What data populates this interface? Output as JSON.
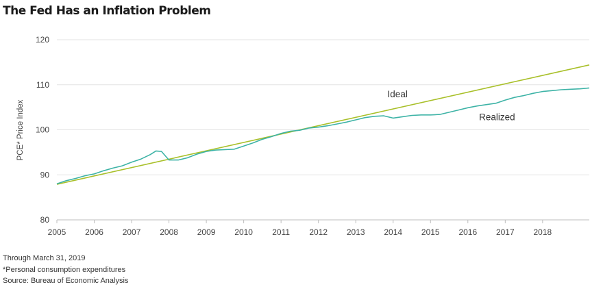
{
  "chart_data": {
    "type": "line",
    "title": "The Fed Has an Inflation Problem",
    "ylabel": "PCE* Price Index",
    "xlabel": "",
    "xlim": [
      2005,
      2019.25
    ],
    "ylim": [
      80,
      120
    ],
    "y_ticks": [
      80,
      90,
      100,
      110,
      120
    ],
    "x_ticks": [
      "2005",
      "2006",
      "2007",
      "2008",
      "2009",
      "2010",
      "2011",
      "2012",
      "2013",
      "2014",
      "2015",
      "2016",
      "2017",
      "2018"
    ],
    "grid": "horizontal",
    "series": [
      {
        "name": "Ideal",
        "color": "#a9c02a",
        "x": [
          2005.0,
          2019.25
        ],
        "y": [
          87.9,
          114.4
        ]
      },
      {
        "name": "Realized",
        "color": "#3db3a6",
        "x": [
          2005.0,
          2005.25,
          2005.5,
          2005.75,
          2006.0,
          2006.25,
          2006.5,
          2006.75,
          2007.0,
          2007.25,
          2007.5,
          2007.65,
          2007.8,
          2008.0,
          2008.25,
          2008.5,
          2008.75,
          2009.0,
          2009.25,
          2009.5,
          2009.75,
          2010.0,
          2010.25,
          2010.5,
          2010.75,
          2011.0,
          2011.25,
          2011.5,
          2011.75,
          2012.0,
          2012.25,
          2012.5,
          2012.75,
          2013.0,
          2013.25,
          2013.5,
          2013.75,
          2014.0,
          2014.25,
          2014.5,
          2014.75,
          2015.0,
          2015.25,
          2015.5,
          2015.75,
          2016.0,
          2016.25,
          2016.5,
          2016.75,
          2017.0,
          2017.25,
          2017.5,
          2017.75,
          2018.0,
          2018.25,
          2018.5,
          2018.75,
          2019.0,
          2019.25
        ],
        "y": [
          88.0,
          88.7,
          89.2,
          89.8,
          90.2,
          90.9,
          91.5,
          92.0,
          92.8,
          93.5,
          94.5,
          95.3,
          95.2,
          93.3,
          93.3,
          93.8,
          94.6,
          95.2,
          95.5,
          95.6,
          95.7,
          96.4,
          97.1,
          97.9,
          98.5,
          99.2,
          99.7,
          99.9,
          100.4,
          100.6,
          100.9,
          101.3,
          101.7,
          102.2,
          102.7,
          103.0,
          103.1,
          102.6,
          102.9,
          103.2,
          103.3,
          103.3,
          103.4,
          103.9,
          104.4,
          104.9,
          105.3,
          105.6,
          105.9,
          106.6,
          107.2,
          107.6,
          108.1,
          108.5,
          108.7,
          108.9,
          109.0,
          109.1,
          109.3
        ]
      }
    ],
    "annotations": [
      {
        "text": "Ideal",
        "x": 2013.85,
        "y": 107.2
      },
      {
        "text": "Realized",
        "x": 2016.3,
        "y": 102.1
      }
    ]
  },
  "notes": [
    "Through March 31, 2019",
    "*Personal consumption expenditures",
    "Source: Bureau of Economic Analysis"
  ]
}
